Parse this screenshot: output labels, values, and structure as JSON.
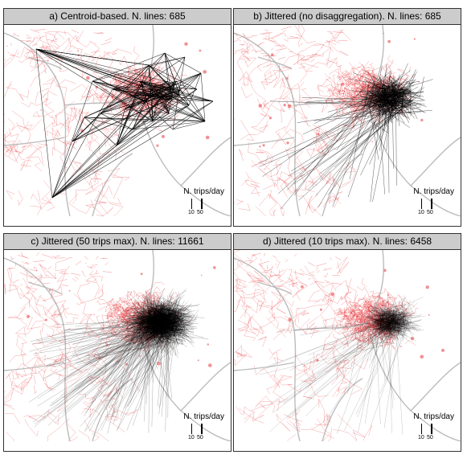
{
  "panels": [
    {
      "id": "a",
      "title": "a) Centroid-based. N. lines: 685",
      "lines": 685,
      "style": "centroid",
      "draw": 230,
      "opacity": 0.85,
      "width": 0.55
    },
    {
      "id": "b",
      "title": "b) Jittered (no disaggregation). N. lines: 685",
      "lines": 685,
      "style": "jitter",
      "draw": 420,
      "opacity": 0.7,
      "width": 0.45
    },
    {
      "id": "c",
      "title": "c) Jittered (50 trips max). N. lines: 11661",
      "lines": 11661,
      "style": "jitter50",
      "draw": 1500,
      "opacity": 0.45,
      "width": 0.35
    },
    {
      "id": "d",
      "title": "d) Jittered (10 trips max). N. lines: 6458",
      "lines": 6458,
      "style": "jitter10",
      "draw": 700,
      "opacity": 0.4,
      "width": 0.3
    }
  ],
  "legend": {
    "title": "N. trips/day",
    "breaks": [
      "10",
      "50"
    ]
  },
  "colors": {
    "network": "#e8383c",
    "boundary": "#b0b0b0",
    "flows": "#000000",
    "header_bg": "#cccccc"
  }
}
